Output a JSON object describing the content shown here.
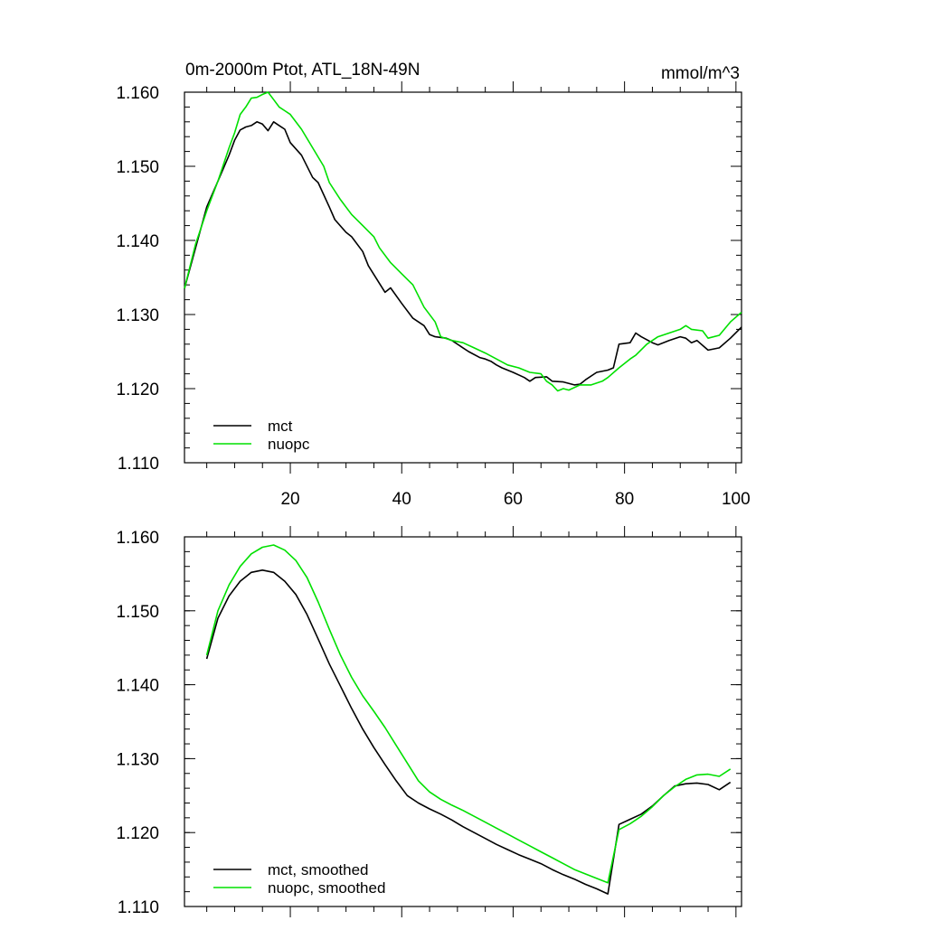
{
  "chart_data": [
    {
      "type": "line",
      "title": "0m-2000m Ptot, ATL_18N-49N",
      "units": "mmol/m^3",
      "xlabel": "",
      "ylabel": "",
      "xlim": [
        1,
        101
      ],
      "ylim": [
        1.11,
        1.16
      ],
      "y_ticks": [
        "1.110",
        "1.120",
        "1.130",
        "1.140",
        "1.150",
        "1.160"
      ],
      "x_ticks": [
        "20",
        "40",
        "60",
        "80",
        "100"
      ],
      "legend_position": "bottom-left",
      "colors": {
        "mct": "#000000",
        "nuopc": "#00e000"
      },
      "series": [
        {
          "name": "mct",
          "color": "#000000",
          "x": [
            1,
            3,
            5,
            7,
            9,
            10,
            11,
            12,
            13,
            14,
            15,
            16,
            17,
            18,
            19,
            20,
            22,
            24,
            25,
            27,
            28,
            30,
            31,
            33,
            34,
            35,
            37,
            38,
            40,
            42,
            44,
            45,
            46,
            48,
            49,
            51,
            52,
            54,
            55,
            56,
            57,
            58,
            60,
            62,
            63,
            64,
            66,
            67,
            69,
            71,
            72,
            73,
            75,
            77,
            78,
            79,
            81,
            82,
            83,
            85,
            86,
            88,
            90,
            91,
            92,
            93,
            95,
            97,
            99,
            101
          ],
          "values": [
            1.1335,
            1.139,
            1.1445,
            1.148,
            1.1515,
            1.1535,
            1.1549,
            1.1553,
            1.1555,
            1.156,
            1.1557,
            1.1548,
            1.156,
            1.1555,
            1.155,
            1.1532,
            1.1515,
            1.1485,
            1.1478,
            1.1445,
            1.1428,
            1.1411,
            1.1405,
            1.1385,
            1.1366,
            1.1354,
            1.133,
            1.1336,
            1.1315,
            1.1295,
            1.1285,
            1.1273,
            1.127,
            1.1268,
            1.1265,
            1.1255,
            1.125,
            1.1242,
            1.124,
            1.1237,
            1.1232,
            1.1228,
            1.1222,
            1.1215,
            1.121,
            1.1215,
            1.1216,
            1.121,
            1.1209,
            1.1205,
            1.1206,
            1.1212,
            1.1222,
            1.1225,
            1.1228,
            1.126,
            1.1262,
            1.1275,
            1.127,
            1.1262,
            1.1259,
            1.1265,
            1.127,
            1.1268,
            1.1262,
            1.1265,
            1.1252,
            1.1255,
            1.1268,
            1.1283
          ]
        },
        {
          "name": "nuopc",
          "color": "#00e000",
          "x": [
            1,
            3,
            5,
            7,
            9,
            10,
            11,
            12,
            13,
            14,
            15,
            16,
            17,
            18,
            19,
            20,
            22,
            24,
            26,
            27,
            29,
            31,
            33,
            35,
            36,
            38,
            40,
            42,
            44,
            46,
            47,
            49,
            51,
            53,
            55,
            57,
            59,
            61,
            63,
            65,
            66,
            67,
            68,
            69,
            70,
            72,
            74,
            76,
            77,
            79,
            81,
            82,
            84,
            86,
            88,
            90,
            91,
            92,
            94,
            95,
            97,
            99,
            101
          ],
          "values": [
            1.1335,
            1.1395,
            1.144,
            1.148,
            1.1525,
            1.1545,
            1.157,
            1.158,
            1.1592,
            1.1593,
            1.1597,
            1.16,
            1.159,
            1.158,
            1.1575,
            1.157,
            1.155,
            1.1525,
            1.15,
            1.1478,
            1.1455,
            1.1435,
            1.142,
            1.1405,
            1.139,
            1.137,
            1.1355,
            1.134,
            1.131,
            1.129,
            1.127,
            1.1265,
            1.1262,
            1.1255,
            1.1248,
            1.124,
            1.1232,
            1.1228,
            1.1222,
            1.122,
            1.121,
            1.1205,
            1.1197,
            1.12,
            1.1198,
            1.1205,
            1.1205,
            1.121,
            1.1215,
            1.1228,
            1.124,
            1.1245,
            1.126,
            1.127,
            1.1275,
            1.128,
            1.1285,
            1.128,
            1.1278,
            1.1268,
            1.1272,
            1.129,
            1.1303
          ]
        }
      ]
    },
    {
      "type": "line",
      "title": "",
      "xlabel": "",
      "ylabel": "",
      "xlim": [
        1,
        101
      ],
      "ylim": [
        1.11,
        1.16
      ],
      "y_ticks": [
        "1.110",
        "1.120",
        "1.130",
        "1.140",
        "1.150",
        "1.160"
      ],
      "x_ticks": [],
      "legend_position": "bottom-left",
      "series": [
        {
          "name": "mct, smoothed",
          "color": "#000000",
          "x": [
            5,
            7,
            9,
            11,
            13,
            15,
            17,
            19,
            21,
            23,
            25,
            27,
            29,
            31,
            33,
            35,
            37,
            39,
            41,
            43,
            45,
            47,
            49,
            51,
            53,
            55,
            57,
            59,
            61,
            63,
            65,
            67,
            69,
            71,
            73,
            75,
            77,
            79,
            81,
            83,
            85,
            87,
            89,
            91,
            93,
            95,
            97,
            99
          ],
          "values": [
            1.1435,
            1.149,
            1.152,
            1.154,
            1.1552,
            1.1555,
            1.1552,
            1.154,
            1.1522,
            1.1495,
            1.1462,
            1.1428,
            1.1398,
            1.1368,
            1.134,
            1.1315,
            1.1292,
            1.127,
            1.125,
            1.124,
            1.1232,
            1.1225,
            1.1217,
            1.1208,
            1.12,
            1.1192,
            1.1184,
            1.1177,
            1.117,
            1.1164,
            1.1158,
            1.115,
            1.1143,
            1.1137,
            1.113,
            1.1124,
            1.1117,
            1.1211,
            1.1218,
            1.1225,
            1.1236,
            1.125,
            1.1263,
            1.1266,
            1.1267,
            1.1265,
            1.1258,
            1.1268
          ]
        },
        {
          "name": "nuopc, smoothed",
          "color": "#00e000",
          "x": [
            5,
            7,
            9,
            11,
            13,
            15,
            17,
            19,
            21,
            23,
            25,
            27,
            29,
            31,
            33,
            35,
            37,
            39,
            41,
            43,
            45,
            47,
            49,
            51,
            53,
            55,
            57,
            59,
            61,
            63,
            65,
            67,
            69,
            71,
            73,
            75,
            77,
            79,
            81,
            83,
            85,
            87,
            89,
            91,
            93,
            95,
            97,
            99
          ],
          "values": [
            1.144,
            1.15,
            1.1535,
            1.156,
            1.1577,
            1.1586,
            1.1589,
            1.1582,
            1.1568,
            1.1545,
            1.1512,
            1.1475,
            1.144,
            1.141,
            1.1385,
            1.1364,
            1.1342,
            1.1318,
            1.1294,
            1.127,
            1.1255,
            1.1245,
            1.1237,
            1.123,
            1.1222,
            1.1214,
            1.1206,
            1.1198,
            1.119,
            1.1182,
            1.1174,
            1.1166,
            1.1158,
            1.115,
            1.1144,
            1.1138,
            1.1132,
            1.1204,
            1.1212,
            1.1222,
            1.1235,
            1.125,
            1.1262,
            1.1272,
            1.1278,
            1.1279,
            1.1276,
            1.1286
          ]
        }
      ]
    }
  ]
}
